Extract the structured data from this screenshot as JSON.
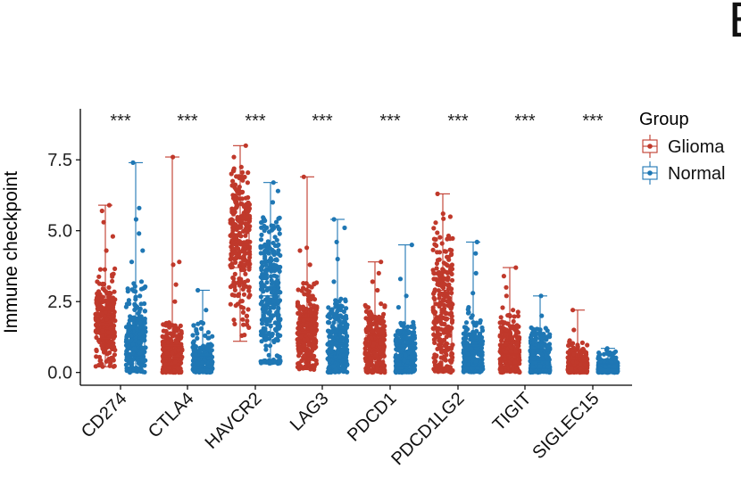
{
  "panel_letter": "E",
  "chart_data": {
    "type": "box-jitter",
    "title": "",
    "xlabel": "",
    "ylabel": "Immune checkpoint",
    "ylim": [
      -0.45,
      9.3
    ],
    "yticks": [
      0.0,
      2.5,
      5.0,
      7.5
    ],
    "ytick_labels": [
      "0.0",
      "2.5",
      "5.0",
      "7.5"
    ],
    "categories": [
      "CD274",
      "CTLA4",
      "HAVCR2",
      "LAG3",
      "PDCD1",
      "PDCD1LG2",
      "TIGIT",
      "SIGLEC15"
    ],
    "significance": [
      "***",
      "***",
      "***",
      "***",
      "***",
      "***",
      "***",
      "***"
    ],
    "legend": {
      "title": "Group",
      "position": "top-right"
    },
    "series": [
      {
        "name": "Glioma",
        "color": "#C0392B",
        "summary": [
          {
            "min": 0.2,
            "q1": 1.2,
            "median": 1.7,
            "q3": 2.2,
            "max": 5.9,
            "bulk_top": 3.8,
            "outliers": [
              4.3,
              4.8,
              5.3,
              5.7,
              5.9
            ]
          },
          {
            "min": 0.0,
            "q1": 0.25,
            "median": 0.55,
            "q3": 0.95,
            "max": 7.6,
            "bulk_top": 1.8,
            "outliers": [
              2.5,
              3.1,
              3.8,
              3.9,
              7.6
            ]
          },
          {
            "min": 1.1,
            "q1": 3.7,
            "median": 4.5,
            "q3": 5.4,
            "max": 8.0,
            "bulk_top": 7.3,
            "outliers": [
              7.6,
              8.0
            ]
          },
          {
            "min": 0.1,
            "q1": 0.9,
            "median": 1.4,
            "q3": 1.9,
            "max": 6.9,
            "bulk_top": 3.2,
            "outliers": [
              3.8,
              4.3,
              4.4,
              6.9
            ]
          },
          {
            "min": 0.0,
            "q1": 0.4,
            "median": 0.8,
            "q3": 1.3,
            "max": 3.9,
            "bulk_top": 2.5,
            "outliers": [
              2.9,
              3.2,
              3.5,
              3.9
            ]
          },
          {
            "min": 0.0,
            "q1": 1.0,
            "median": 1.9,
            "q3": 2.9,
            "max": 6.3,
            "bulk_top": 5.5,
            "outliers": [
              5.6,
              6.3
            ]
          },
          {
            "min": 0.0,
            "q1": 0.3,
            "median": 0.65,
            "q3": 1.1,
            "max": 3.7,
            "bulk_top": 2.3,
            "outliers": [
              2.7,
              3.0,
              3.4,
              3.7
            ]
          },
          {
            "min": 0.0,
            "q1": 0.05,
            "median": 0.2,
            "q3": 0.45,
            "max": 2.2,
            "bulk_top": 1.2,
            "outliers": [
              1.5,
              2.2
            ]
          }
        ]
      },
      {
        "name": "Normal",
        "color": "#1F77B4",
        "summary": [
          {
            "min": 0.0,
            "q1": 0.6,
            "median": 1.1,
            "q3": 1.6,
            "max": 7.4,
            "bulk_top": 3.3,
            "outliers": [
              3.9,
              4.3,
              4.9,
              5.4,
              5.8,
              7.4
            ]
          },
          {
            "min": 0.0,
            "q1": 0.1,
            "median": 0.3,
            "q3": 0.6,
            "max": 2.9,
            "bulk_top": 1.8,
            "outliers": [
              2.2,
              2.9
            ]
          },
          {
            "min": 0.3,
            "q1": 1.7,
            "median": 2.7,
            "q3": 3.6,
            "max": 6.7,
            "bulk_top": 5.6,
            "outliers": [
              6.0,
              6.4,
              6.7
            ]
          },
          {
            "min": 0.0,
            "q1": 0.5,
            "median": 0.95,
            "q3": 1.5,
            "max": 5.4,
            "bulk_top": 2.6,
            "outliers": [
              3.2,
              4.0,
              4.6,
              5.1,
              5.4
            ]
          },
          {
            "min": 0.0,
            "q1": 0.2,
            "median": 0.5,
            "q3": 0.95,
            "max": 4.5,
            "bulk_top": 1.8,
            "outliers": [
              2.3,
              2.7,
              3.3,
              4.5
            ]
          },
          {
            "min": 0.0,
            "q1": 0.2,
            "median": 0.5,
            "q3": 0.95,
            "max": 4.6,
            "bulk_top": 2.3,
            "outliers": [
              2.8,
              3.5,
              4.2,
              4.6
            ]
          },
          {
            "min": 0.0,
            "q1": 0.15,
            "median": 0.4,
            "q3": 0.8,
            "max": 2.7,
            "bulk_top": 1.6,
            "outliers": [
              2.0,
              2.7
            ]
          },
          {
            "min": 0.0,
            "q1": 0.02,
            "median": 0.1,
            "q3": 0.3,
            "max": 0.85,
            "bulk_top": 0.8,
            "outliers": [
              0.85
            ]
          }
        ]
      }
    ]
  }
}
